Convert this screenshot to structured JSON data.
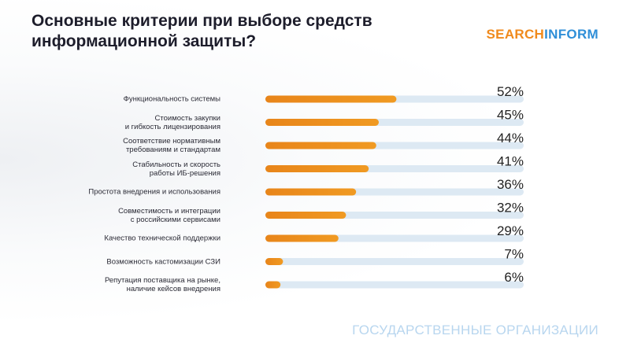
{
  "chart_data": {
    "type": "hbar",
    "title": "Основные критерии при выборе средств\nинформационной защиты?",
    "logo": [
      "SEARCH",
      "INFORM"
    ],
    "footer": "ГОСУДАРСТВЕННЫЕ ОРГАНИЗАЦИИ",
    "categories": [
      "Функциональность системы",
      "Стоимость закупки\nи гибкость лицензирования",
      "Соответствие нормативным\nтребованиям и стандартам",
      "Стабильность и скорость\nработы ИБ-решения",
      "Простота внедрения и использования",
      "Совместимость и интеграции\nс российскими сервисами",
      "Качество технической поддержки",
      "Возможность кастомизации СЗИ",
      "Репутация поставщика на рынке,\nналичие кейсов внедрения"
    ],
    "values": [
      52,
      45,
      44,
      41,
      36,
      32,
      29,
      7,
      6
    ],
    "value_labels": [
      "52%",
      "45%",
      "44%",
      "41%",
      "36%",
      "32%",
      "29%",
      "7%",
      "6%"
    ],
    "xlim": [
      0,
      100
    ],
    "color": "#f09a22",
    "track_color": "#dde9f3"
  }
}
